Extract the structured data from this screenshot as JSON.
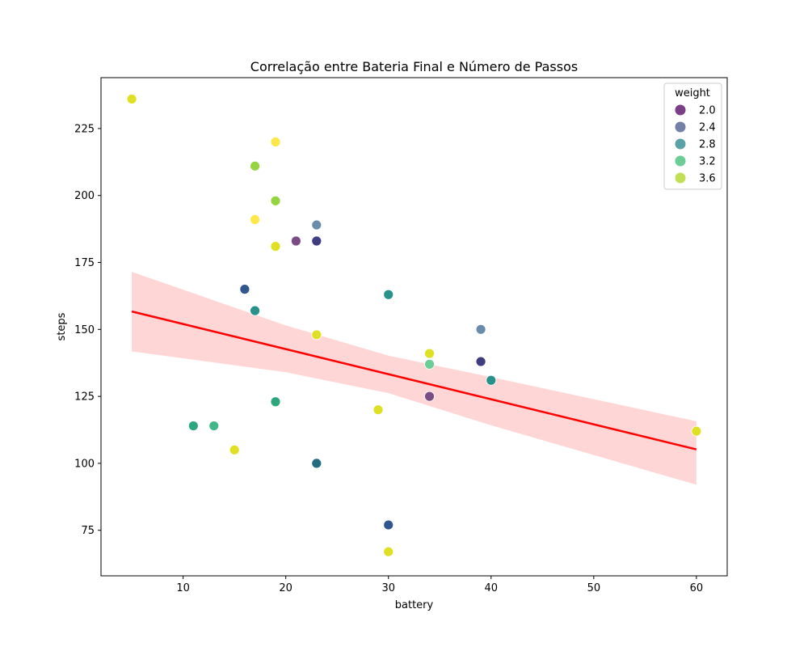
{
  "chart_data": {
    "type": "scatter",
    "title": "Correlação entre Bateria Final e Número de Passos",
    "xlabel": "battery",
    "ylabel": "steps",
    "xlim": [
      2,
      63
    ],
    "ylim": [
      58,
      244
    ],
    "xticks": [
      10,
      20,
      30,
      40,
      50,
      60
    ],
    "yticks": [
      75,
      100,
      125,
      150,
      175,
      200,
      225
    ],
    "grid": false,
    "legend": {
      "title": "weight",
      "placement": "top-right",
      "entries": [
        {
          "label": "2.0",
          "color": "#7b3f85"
        },
        {
          "label": "2.4",
          "color": "#7480a8"
        },
        {
          "label": "2.8",
          "color": "#5aa2a6"
        },
        {
          "label": "3.2",
          "color": "#6ccd96"
        },
        {
          "label": "3.6",
          "color": "#c1e056"
        }
      ]
    },
    "points": [
      {
        "x": 5,
        "y": 236,
        "color": "#dfe023"
      },
      {
        "x": 19,
        "y": 220,
        "color": "#fde84a"
      },
      {
        "x": 17,
        "y": 211,
        "color": "#95d340"
      },
      {
        "x": 19,
        "y": 198,
        "color": "#95d340"
      },
      {
        "x": 17,
        "y": 191,
        "color": "#fde84a"
      },
      {
        "x": 23,
        "y": 189,
        "color": "#6a8cab"
      },
      {
        "x": 21,
        "y": 183,
        "color": "#7a4c86"
      },
      {
        "x": 23,
        "y": 183,
        "color": "#3f3d80"
      },
      {
        "x": 19,
        "y": 181,
        "color": "#dfe023"
      },
      {
        "x": 16,
        "y": 165,
        "color": "#32578e"
      },
      {
        "x": 30,
        "y": 163,
        "color": "#27918a"
      },
      {
        "x": 17,
        "y": 157,
        "color": "#27918a"
      },
      {
        "x": 39,
        "y": 150,
        "color": "#6a8cab"
      },
      {
        "x": 23,
        "y": 148,
        "color": "#dfe023"
      },
      {
        "x": 34,
        "y": 141,
        "color": "#dfe023"
      },
      {
        "x": 39,
        "y": 138,
        "color": "#3f3d80"
      },
      {
        "x": 34,
        "y": 137,
        "color": "#6ccd96"
      },
      {
        "x": 40,
        "y": 131,
        "color": "#27918a"
      },
      {
        "x": 34,
        "y": 125,
        "color": "#7a4c86"
      },
      {
        "x": 19,
        "y": 123,
        "color": "#2ca67a"
      },
      {
        "x": 29,
        "y": 120,
        "color": "#dfe023"
      },
      {
        "x": 11,
        "y": 114,
        "color": "#2ca67a"
      },
      {
        "x": 13,
        "y": 114,
        "color": "#44b78a"
      },
      {
        "x": 60,
        "y": 112,
        "color": "#dfe023"
      },
      {
        "x": 15,
        "y": 105,
        "color": "#dfe023"
      },
      {
        "x": 23,
        "y": 100,
        "color": "#236b7e"
      },
      {
        "x": 30,
        "y": 77,
        "color": "#32578e"
      },
      {
        "x": 30,
        "y": 67,
        "color": "#dfe023"
      }
    ],
    "regression": {
      "color": "#ff0000",
      "band_color": "#ffcccc",
      "line": [
        [
          5,
          156.7
        ],
        [
          60,
          105.2
        ]
      ],
      "band": [
        {
          "x": 5,
          "lower": 141.8,
          "upper": 171.5
        },
        {
          "x": 20,
          "lower": 134.0,
          "upper": 151.5
        },
        {
          "x": 30,
          "lower": 126.2,
          "upper": 140.2
        },
        {
          "x": 40,
          "lower": 114.2,
          "upper": 132.2
        },
        {
          "x": 60,
          "lower": 92.0,
          "upper": 115.7
        }
      ]
    }
  }
}
